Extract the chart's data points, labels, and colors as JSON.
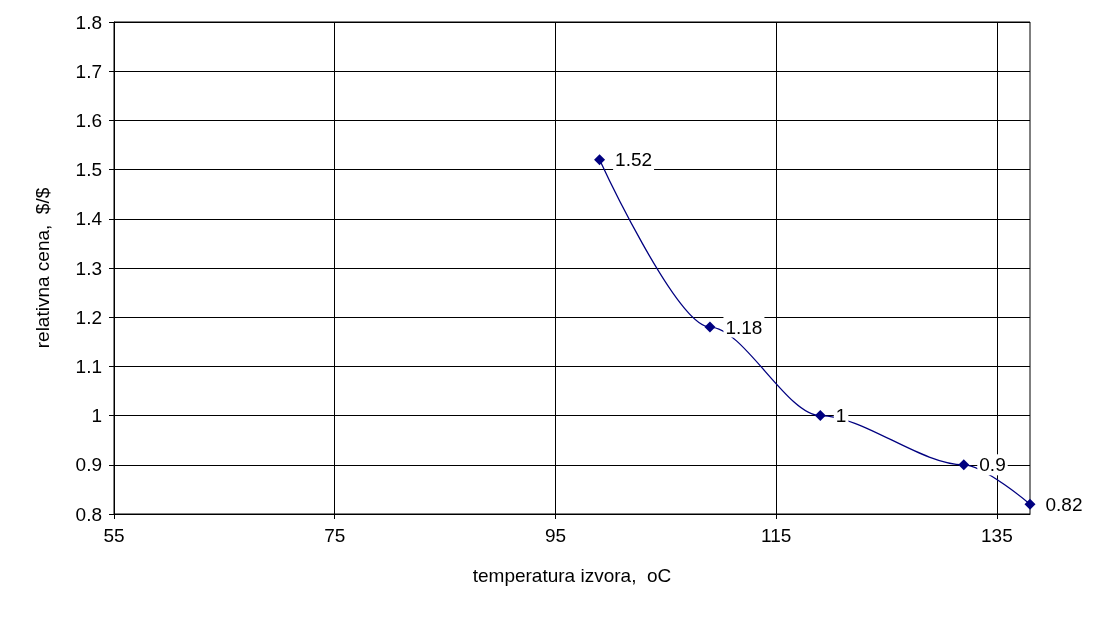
{
  "chart_data": {
    "type": "line",
    "xlabel": "temperatura izvora,  oC",
    "ylabel": "relativna cena,  $/$",
    "x": [
      99,
      109,
      119,
      132,
      138
    ],
    "series": [
      {
        "color": "#000080",
        "values": [
          1.52,
          1.18,
          1,
          0.9,
          0.82
        ]
      }
    ],
    "xlim": [
      55,
      138
    ],
    "xticks": [
      55,
      75,
      95,
      115,
      135
    ],
    "ylim": [
      0.8,
      1.8
    ],
    "yticks": [
      0.8,
      0.9,
      1,
      1.1,
      1.2,
      1.3,
      1.4,
      1.5,
      1.6,
      1.7,
      1.8
    ],
    "grid": true,
    "marker": "diamond",
    "line_style": "solid",
    "data_labels": true
  }
}
